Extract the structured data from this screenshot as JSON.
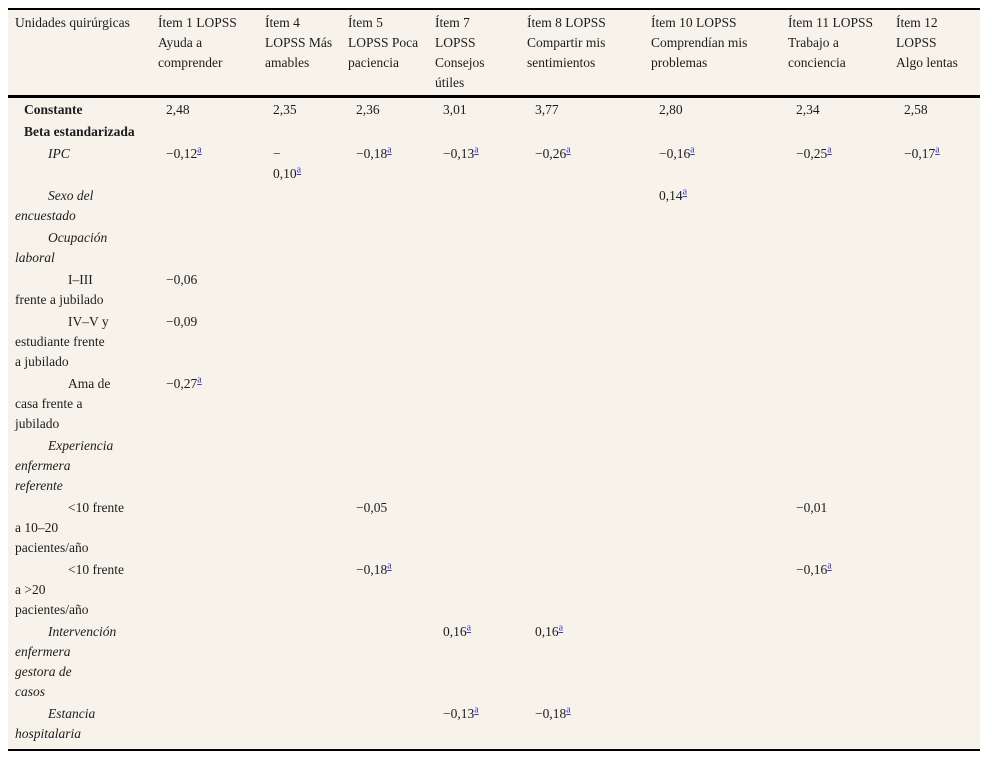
{
  "page": {
    "background": "#ffffff",
    "table_background": "#f7f3eb",
    "rule_color": "#000000",
    "footnote_color": "#3a3acb"
  },
  "table": {
    "footnote_marker": "a",
    "columns": [
      {
        "header": "Unidades quirúrgicas"
      },
      {
        "header": "Ítem 1 LOPSS\nAyuda a\ncomprender"
      },
      {
        "header": "Ítem 4\nLOPSS Más\namables"
      },
      {
        "header": "Ítem 5\nLOPSS Poca\npaciencia"
      },
      {
        "header": "Ítem 7\nLOPSS\nConsejos\nútiles"
      },
      {
        "header": "Ítem 8 LOPSS\nCompartir mis\nsentimientos"
      },
      {
        "header": "Ítem 10 LOPSS\nComprendían mis\nproblemas"
      },
      {
        "header": "Ítem 11 LOPSS\nTrabajo a\nconciencia"
      },
      {
        "header": "Ítem 12\nLOPSS\nAlgo lentas"
      }
    ],
    "rows": [
      {
        "label": "Constante",
        "style": "bold",
        "indent": 0,
        "cells": [
          "2,48",
          "2,35",
          "2,36",
          "3,01",
          "3,77",
          "2,80",
          "2,34",
          "2,58"
        ]
      },
      {
        "label": "Beta estandarizada",
        "style": "bold",
        "indent": 0,
        "cells": [
          null,
          null,
          null,
          null,
          null,
          null,
          null,
          null
        ]
      },
      {
        "label": "IPC",
        "style": "italic",
        "indent": 1,
        "cells": [
          {
            "v": "−0,12",
            "sup": true
          },
          {
            "v": "−\n0,10",
            "sup": true
          },
          {
            "v": "−0,18",
            "sup": true
          },
          {
            "v": "−0,13",
            "sup": true
          },
          {
            "v": "−0,26",
            "sup": true
          },
          {
            "v": "−0,16",
            "sup": true
          },
          {
            "v": "−0,25",
            "sup": true
          },
          {
            "v": "−0,17",
            "sup": true
          }
        ]
      },
      {
        "label": "Sexo del\nencuestado",
        "style": "italic",
        "indent": 1,
        "cells": [
          null,
          null,
          null,
          null,
          null,
          {
            "v": "0,14",
            "sup": true
          },
          null,
          null
        ]
      },
      {
        "label": "Ocupación\nlaboral",
        "style": "italic",
        "indent": 1,
        "cells": [
          null,
          null,
          null,
          null,
          null,
          null,
          null,
          null
        ]
      },
      {
        "label": "I–III\nfrente a jubilado",
        "style": "plain",
        "indent": 2,
        "cells": [
          {
            "v": "−0,06"
          },
          null,
          null,
          null,
          null,
          null,
          null,
          null
        ]
      },
      {
        "label": "IV–V y\nestudiante frente\na jubilado",
        "style": "plain",
        "indent": 2,
        "cells": [
          {
            "v": "−0,09"
          },
          null,
          null,
          null,
          null,
          null,
          null,
          null
        ]
      },
      {
        "label": "Ama de\ncasa frente a\njubilado",
        "style": "plain",
        "indent": 2,
        "cells": [
          {
            "v": "−0,27",
            "sup": true
          },
          null,
          null,
          null,
          null,
          null,
          null,
          null
        ]
      },
      {
        "label": "Experiencia\nenfermera\nreferente",
        "style": "italic",
        "indent": 1,
        "cells": [
          null,
          null,
          null,
          null,
          null,
          null,
          null,
          null
        ]
      },
      {
        "label": "<10 frente\na 10–20\npacientes/año",
        "style": "plain",
        "indent": 2,
        "cells": [
          null,
          null,
          {
            "v": "−0,05"
          },
          null,
          null,
          null,
          {
            "v": "−0,01"
          },
          null
        ]
      },
      {
        "label": "<10 frente\na >20\npacientes/año",
        "style": "plain",
        "indent": 2,
        "cells": [
          null,
          null,
          {
            "v": "−0,18",
            "sup": true
          },
          null,
          null,
          null,
          {
            "v": "−0,16",
            "sup": true
          },
          null
        ]
      },
      {
        "label": "Intervención\nenfermera\ngestora de\ncasos",
        "style": "italic",
        "indent": 1,
        "cells": [
          null,
          null,
          null,
          {
            "v": "0,16",
            "sup": true
          },
          {
            "v": "0,16",
            "sup": true
          },
          null,
          null,
          null
        ]
      },
      {
        "label": "Estancia\nhospitalaria",
        "style": "italic",
        "indent": 1,
        "cells": [
          null,
          null,
          null,
          {
            "v": "−0,13",
            "sup": true
          },
          {
            "v": "−0,18",
            "sup": true
          },
          null,
          null,
          null
        ]
      }
    ]
  }
}
